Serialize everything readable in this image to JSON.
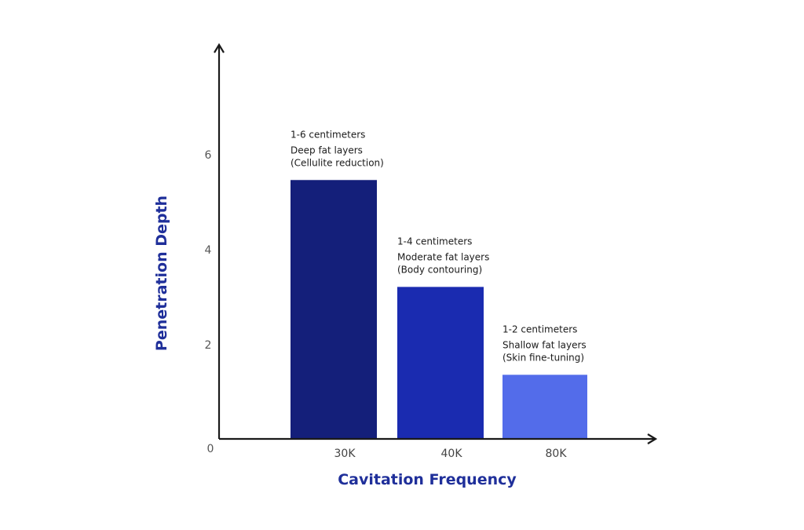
{
  "chart_data": {
    "type": "bar",
    "xlabel": "Cavitation Frequency",
    "ylabel": "Penetration Depth",
    "categories": [
      "30K",
      "40K",
      "80K"
    ],
    "values": [
      5.45,
      3.2,
      1.35
    ],
    "yticks": [
      0,
      2,
      4,
      6
    ],
    "ylim": [
      0,
      8
    ],
    "grid": false,
    "colors": [
      "#141f7a",
      "#1a2bb0",
      "#536cea"
    ],
    "annotations": [
      [
        "1-6 centimeters",
        "Deep fat layers",
        "(Cellulite reduction)"
      ],
      [
        "1-4 centimeters",
        "Moderate fat layers",
        "(Body contouring)"
      ],
      [
        "1-2 centimeters",
        "Shallow fat layers",
        "(Skin fine-tuning)"
      ]
    ],
    "axis_color": "#1a1a1a",
    "title_color": "#1f2f9a"
  }
}
